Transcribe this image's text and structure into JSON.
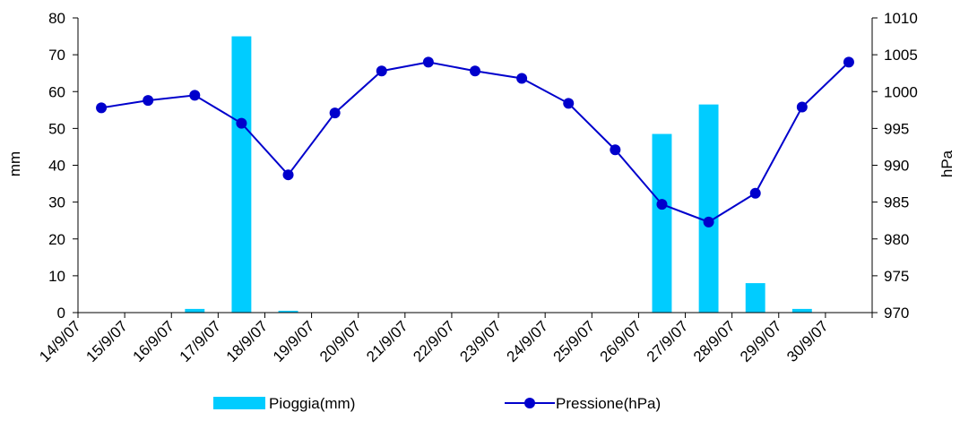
{
  "chart_data": {
    "type": "bar",
    "categories": [
      "14/9/07",
      "15/9/07",
      "16/9/07",
      "17/9/07",
      "18/9/07",
      "19/9/07",
      "20/9/07",
      "21/9/07",
      "22/9/07",
      "23/9/07",
      "24/9/07",
      "25/9/07",
      "26/9/07",
      "27/9/07",
      "28/9/07",
      "29/9/07",
      "30/9/07"
    ],
    "series": [
      {
        "name": "Pioggia(mm)",
        "type": "bar",
        "axis": "left",
        "color": "#00ccff",
        "values": [
          0,
          0,
          1,
          75,
          0.5,
          0,
          0,
          0,
          0,
          0,
          0,
          0,
          48.5,
          56.5,
          8,
          1,
          0
        ]
      },
      {
        "name": "Pressione(hPa)",
        "type": "line",
        "axis": "right",
        "color": "#0000cc",
        "marker_color": "#0000cc",
        "values": [
          997.8,
          998.8,
          999.5,
          995.7,
          988.7,
          997.1,
          1002.8,
          1004.0,
          1002.8,
          1001.8,
          998.4,
          992.1,
          984.7,
          982.3,
          986.2,
          997.9,
          1004.0
        ]
      }
    ],
    "ylabel": "mm",
    "y2label": "hPa",
    "ylim": [
      0,
      80
    ],
    "y2lim": [
      970,
      1010
    ],
    "yticks": [
      "0",
      "10",
      "20",
      "30",
      "40",
      "50",
      "60",
      "70",
      "80"
    ],
    "y2ticks": [
      "970",
      "975",
      "980",
      "985",
      "990",
      "995",
      "1000",
      "1005",
      "1010"
    ],
    "grid": false,
    "legend_position": "bottom"
  }
}
